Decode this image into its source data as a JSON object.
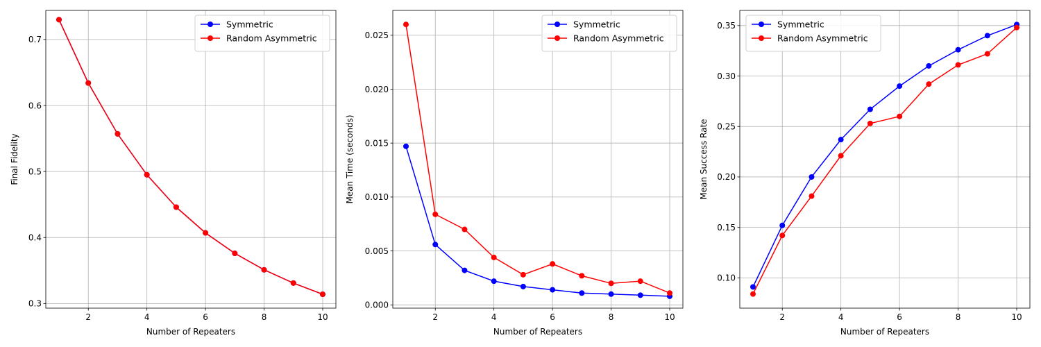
{
  "chart_data": [
    {
      "type": "line",
      "title": "",
      "xlabel": "Number of Repeaters",
      "ylabel": "Final Fidelity",
      "xlim": [
        0.55,
        10.45
      ],
      "ylim": [
        0.293,
        0.744
      ],
      "xticks": [
        2,
        4,
        6,
        8,
        10
      ],
      "xtick_labels": [
        "2",
        "4",
        "6",
        "8",
        "10"
      ],
      "yticks": [
        0.3,
        0.4,
        0.5,
        0.6,
        0.7
      ],
      "ytick_labels": [
        "0.3",
        "0.4",
        "0.5",
        "0.6",
        "0.7"
      ],
      "grid": true,
      "legend_position": "top-right",
      "x": [
        1,
        2,
        3,
        4,
        5,
        6,
        7,
        8,
        9,
        10
      ],
      "series": [
        {
          "name": "Symmetric",
          "color": "#0000ff",
          "values": [
            0.73,
            0.634,
            0.557,
            0.495,
            0.446,
            0.407,
            0.376,
            0.351,
            0.331,
            0.314
          ]
        },
        {
          "name": "Random Asymmetric",
          "color": "#ff0000",
          "values": [
            0.73,
            0.634,
            0.557,
            0.495,
            0.446,
            0.407,
            0.376,
            0.351,
            0.331,
            0.314
          ]
        }
      ]
    },
    {
      "type": "line",
      "title": "",
      "xlabel": "Number of Repeaters",
      "ylabel": "Mean Time (seconds)",
      "xlim": [
        0.55,
        10.45
      ],
      "ylim": [
        -0.0003,
        0.0273
      ],
      "xticks": [
        2,
        4,
        6,
        8,
        10
      ],
      "xtick_labels": [
        "2",
        "4",
        "6",
        "8",
        "10"
      ],
      "yticks": [
        0.0,
        0.005,
        0.01,
        0.015,
        0.02,
        0.025
      ],
      "ytick_labels": [
        "0.000",
        "0.005",
        "0.010",
        "0.015",
        "0.020",
        "0.025"
      ],
      "grid": true,
      "legend_position": "top-right",
      "x": [
        1,
        2,
        3,
        4,
        5,
        6,
        7,
        8,
        9,
        10
      ],
      "series": [
        {
          "name": "Symmetric",
          "color": "#0000ff",
          "values": [
            0.0147,
            0.0056,
            0.0032,
            0.0022,
            0.0017,
            0.0014,
            0.0011,
            0.001,
            0.0009,
            0.0008
          ]
        },
        {
          "name": "Random Asymmetric",
          "color": "#ff0000",
          "values": [
            0.026,
            0.0084,
            0.007,
            0.0044,
            0.0028,
            0.0038,
            0.0027,
            0.002,
            0.0022,
            0.0011
          ]
        }
      ]
    },
    {
      "type": "line",
      "title": "",
      "xlabel": "Number of Repeaters",
      "ylabel": "Mean Success Rate",
      "xlim": [
        0.55,
        10.45
      ],
      "ylim": [
        0.07,
        0.365
      ],
      "xticks": [
        2,
        4,
        6,
        8,
        10
      ],
      "xtick_labels": [
        "2",
        "4",
        "6",
        "8",
        "10"
      ],
      "yticks": [
        0.1,
        0.15,
        0.2,
        0.25,
        0.3,
        0.35
      ],
      "ytick_labels": [
        "0.10",
        "0.15",
        "0.20",
        "0.25",
        "0.30",
        "0.35"
      ],
      "grid": true,
      "legend_position": "top-left",
      "x": [
        1,
        2,
        3,
        4,
        5,
        6,
        7,
        8,
        9,
        10
      ],
      "series": [
        {
          "name": "Symmetric",
          "color": "#0000ff",
          "values": [
            0.091,
            0.152,
            0.2,
            0.237,
            0.267,
            0.29,
            0.31,
            0.326,
            0.34,
            0.351
          ]
        },
        {
          "name": "Random Asymmetric",
          "color": "#ff0000",
          "values": [
            0.084,
            0.142,
            0.181,
            0.221,
            0.253,
            0.26,
            0.292,
            0.311,
            0.322,
            0.348
          ]
        }
      ]
    }
  ]
}
